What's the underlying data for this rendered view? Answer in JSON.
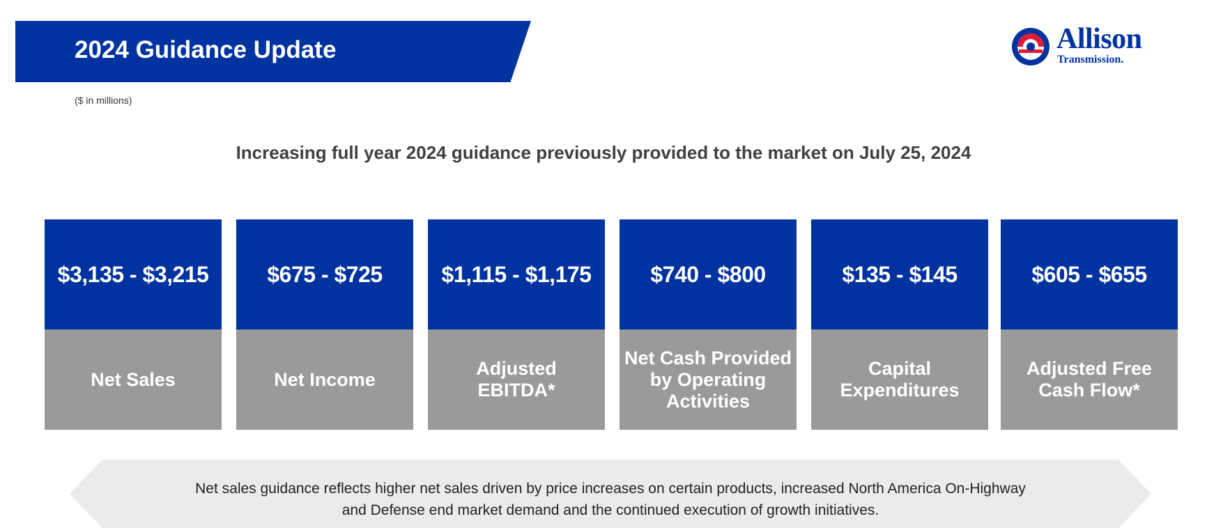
{
  "header": {
    "title": "2024 Guidance Update",
    "units_note": "($ in millions)",
    "logo": {
      "icon": "allison-logo-icon",
      "name": "Allison",
      "subname": "Transmission."
    }
  },
  "subheading": "Increasing full year 2024 guidance previously provided to the market on July 25, 2024",
  "cards": [
    {
      "value": "$3,135 - $3,215",
      "label": "Net Sales"
    },
    {
      "value": "$675 - $725",
      "label": "Net Income"
    },
    {
      "value": "$1,115 - $1,175",
      "label": "Adjusted\nEBITDA*"
    },
    {
      "value": "$740 - $800",
      "label": "Net Cash Provided\nby Operating\nActivities"
    },
    {
      "value": "$135 - $145",
      "label": "Capital\nExpenditures"
    },
    {
      "value": "$605 - $655",
      "label": "Adjusted Free\nCash Flow*"
    }
  ],
  "footnote": "Net sales guidance reflects higher net sales driven by price increases on certain products, increased North America On-Highway\nand Defense end market demand and the continued execution of growth initiatives.",
  "colors": {
    "brand_blue": "#0033a0",
    "brand_red": "#e31837",
    "label_gray": "#9a9a9a",
    "note_gray": "#ebebeb"
  }
}
